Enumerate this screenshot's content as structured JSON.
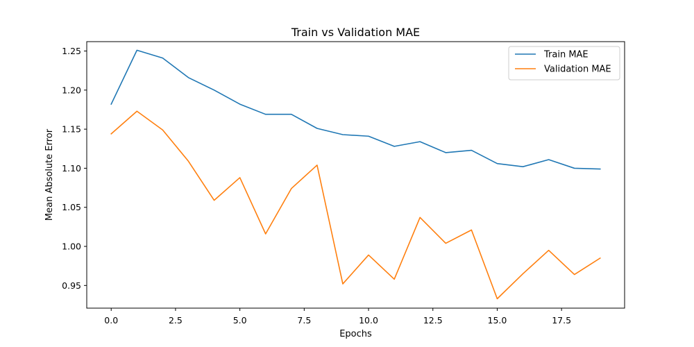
{
  "chart_data": {
    "type": "line",
    "title": "Train vs Validation MAE",
    "xlabel": "Epochs",
    "ylabel": "Mean Absolute Error",
    "xlim": [
      -0.95,
      19.95
    ],
    "ylim": [
      0.921,
      1.262
    ],
    "x_ticks": [
      0.0,
      2.5,
      5.0,
      7.5,
      10.0,
      12.5,
      15.0,
      17.5
    ],
    "x_tick_labels": [
      "0.0",
      "2.5",
      "5.0",
      "7.5",
      "10.0",
      "12.5",
      "15.0",
      "17.5"
    ],
    "y_ticks": [
      0.95,
      1.0,
      1.05,
      1.1,
      1.15,
      1.2,
      1.25
    ],
    "y_tick_labels": [
      "0.95",
      "1.00",
      "1.05",
      "1.10",
      "1.15",
      "1.20",
      "1.25"
    ],
    "grid": false,
    "legend_position": "top-right",
    "x": [
      0,
      1,
      2,
      3,
      4,
      5,
      6,
      7,
      8,
      9,
      10,
      11,
      12,
      13,
      14,
      15,
      16,
      17,
      18,
      19
    ],
    "series": [
      {
        "name": "Train MAE",
        "color": "#1f77b4",
        "values": [
          1.182,
          1.251,
          1.241,
          1.216,
          1.2,
          1.182,
          1.169,
          1.169,
          1.151,
          1.143,
          1.141,
          1.128,
          1.134,
          1.12,
          1.123,
          1.106,
          1.102,
          1.111,
          1.1,
          1.099
        ]
      },
      {
        "name": "Validation MAE",
        "color": "#ff7f0e",
        "values": [
          1.144,
          1.173,
          1.149,
          1.109,
          1.059,
          1.088,
          1.016,
          1.074,
          1.104,
          0.952,
          0.989,
          0.958,
          1.037,
          1.004,
          1.021,
          0.933,
          0.965,
          0.995,
          0.964,
          0.985
        ]
      }
    ]
  }
}
